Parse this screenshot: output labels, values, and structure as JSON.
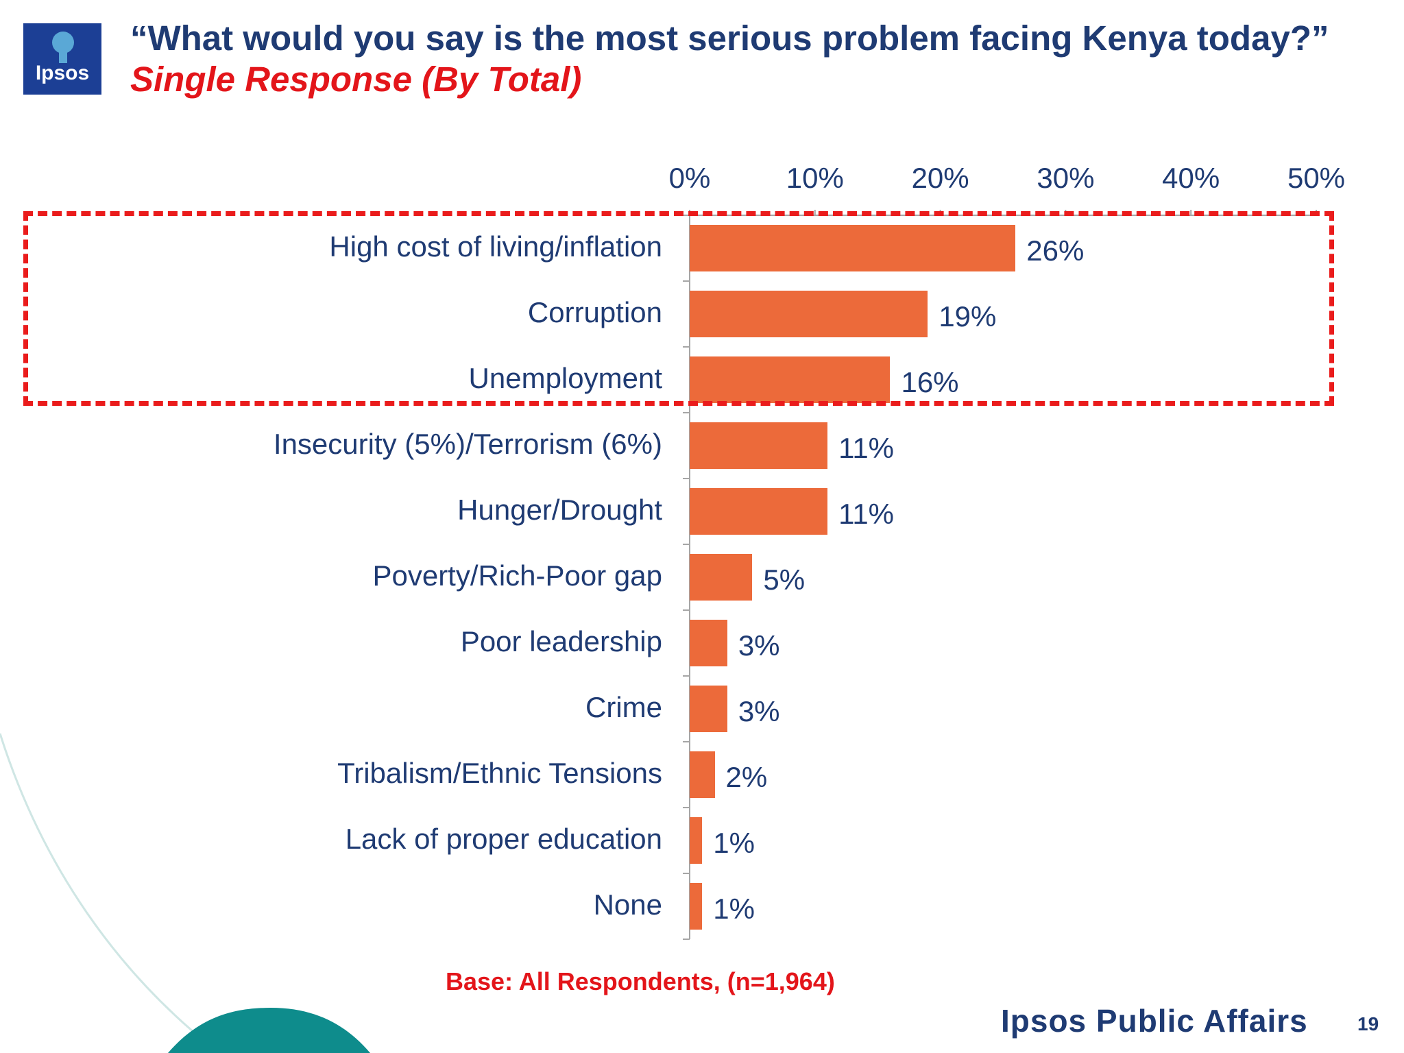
{
  "header": {
    "logo_text": "Ipsos",
    "title_main": "“What would you say is the most serious problem facing Kenya today?”",
    "title_sub": "Single Response (By Total)"
  },
  "chart_data": {
    "type": "bar",
    "orientation": "horizontal",
    "categories": [
      "High cost of living/inflation",
      "Corruption",
      "Unemployment",
      "Insecurity (5%)/Terrorism (6%)",
      "Hunger/Drought",
      "Poverty/Rich-Poor gap",
      "Poor leadership",
      "Crime",
      "Tribalism/Ethnic Tensions",
      "Lack of proper education",
      "None"
    ],
    "values": [
      26,
      19,
      16,
      11,
      11,
      5,
      3,
      3,
      2,
      1,
      1
    ],
    "value_labels": [
      "26%",
      "19%",
      "16%",
      "11%",
      "11%",
      "5%",
      "3%",
      "3%",
      "2%",
      "1%",
      "1%"
    ],
    "xlim": [
      0,
      50
    ],
    "x_ticks": [
      "0%",
      "10%",
      "20%",
      "30%",
      "40%",
      "50%"
    ],
    "x_axis_position": "top",
    "grid": false,
    "bar_color": "#ec6a3a",
    "highlighted_categories": [
      "High cost of living/inflation",
      "Corruption",
      "Unemployment"
    ],
    "highlight_color": "#ea1c1c"
  },
  "base_note": "Base: All Respondents, (n=1,964)",
  "footer": {
    "brand": "Ipsos Public Affairs",
    "page_number": "19"
  },
  "colors": {
    "title": "#1f3b73",
    "accent_red": "#e3151a",
    "logo_bg": "#1c3f95",
    "decor_teal": "#0e8c8c"
  }
}
